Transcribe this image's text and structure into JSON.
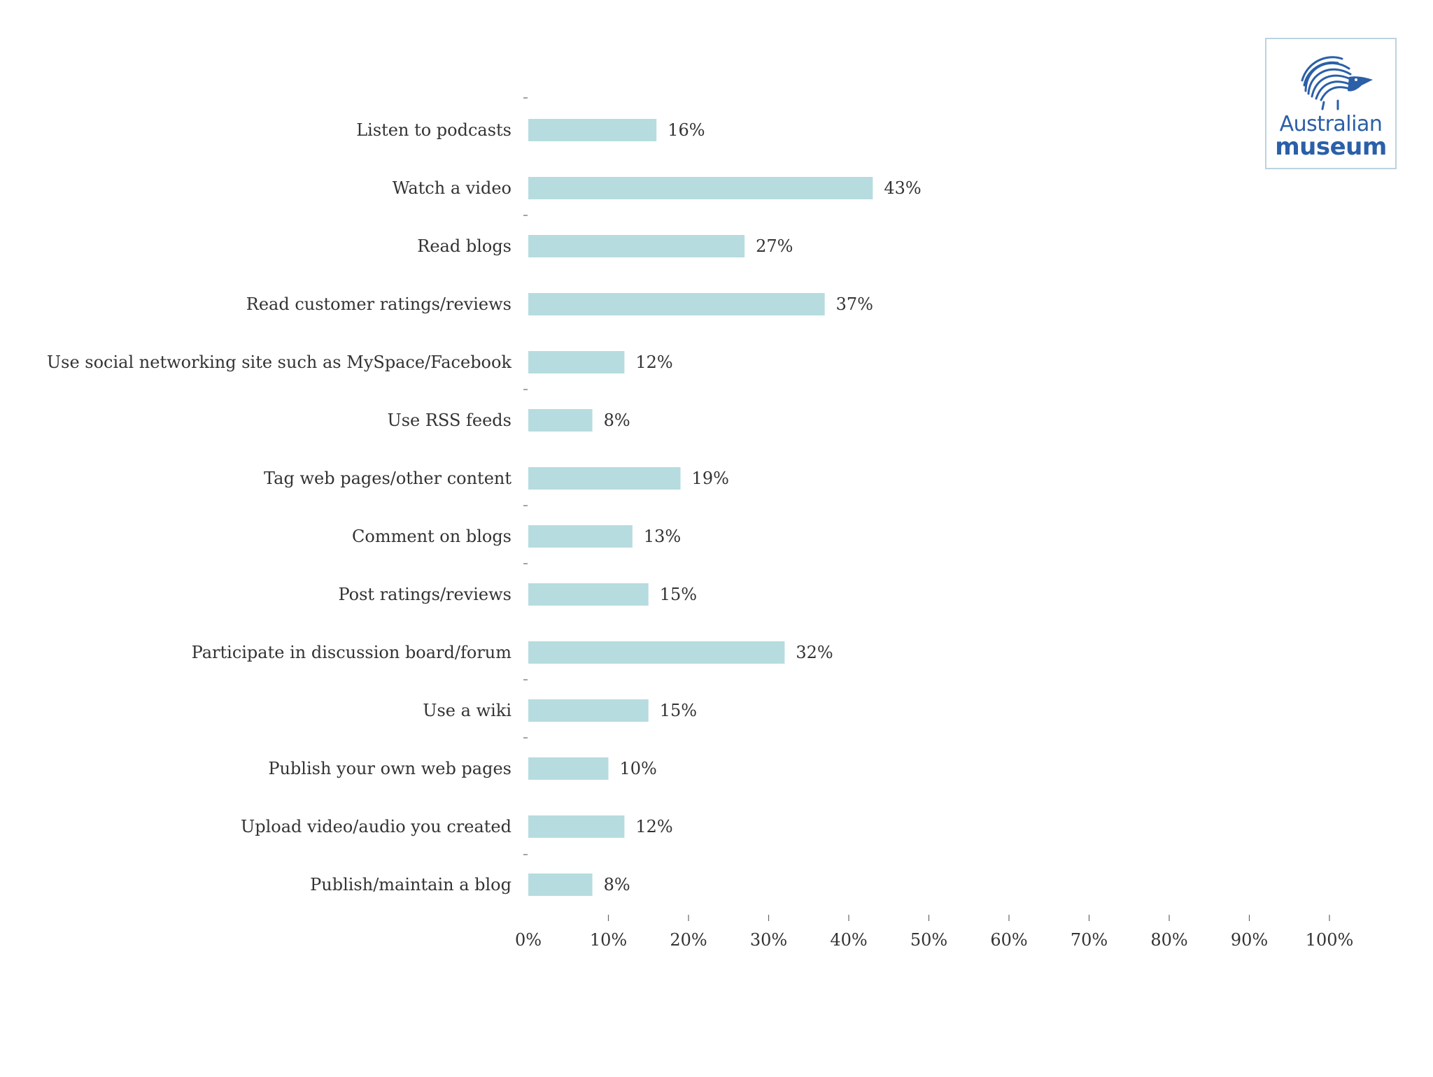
{
  "logo": {
    "line1": "Australian",
    "line2": "museum"
  },
  "chart_data": {
    "type": "bar",
    "orientation": "horizontal",
    "categories": [
      "Listen to podcasts",
      "Watch a video",
      "Read blogs",
      "Read customer ratings/reviews",
      "Use social networking site such as MySpace/Facebook",
      "Use RSS feeds",
      "Tag web pages/other content",
      "Comment on blogs",
      "Post ratings/reviews",
      "Participate in discussion board/forum",
      "Use a wiki",
      "Publish your own web pages",
      "Upload video/audio you created",
      "Publish/maintain a blog"
    ],
    "values": [
      16,
      43,
      27,
      37,
      12,
      8,
      19,
      13,
      15,
      32,
      15,
      10,
      12,
      8
    ],
    "value_labels": [
      "16%",
      "43%",
      "27%",
      "37%",
      "12%",
      "8%",
      "19%",
      "13%",
      "15%",
      "32%",
      "15%",
      "10%",
      "12%",
      "8%"
    ],
    "xlim": [
      0,
      100
    ],
    "xticks": [
      "0%",
      "10%",
      "20%",
      "30%",
      "40%",
      "50%",
      "60%",
      "70%",
      "80%",
      "90%",
      "100%"
    ],
    "bar_color": "#b6dcdf",
    "grid": false,
    "legend": "none",
    "title": "",
    "xlabel": "",
    "ylabel": ""
  }
}
